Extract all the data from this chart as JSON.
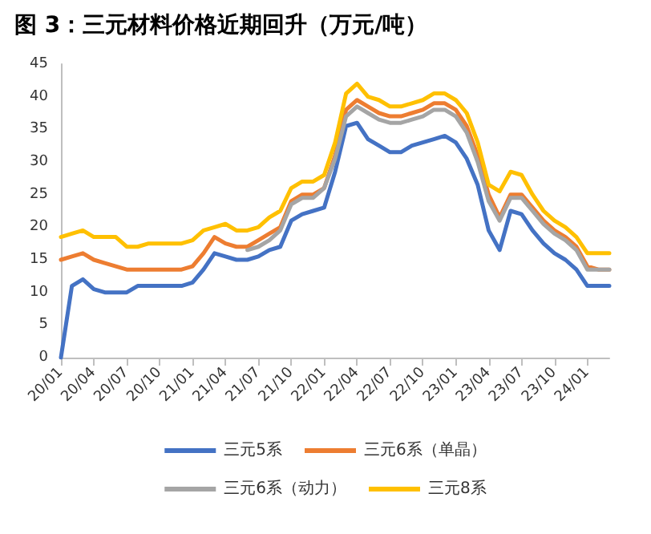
{
  "chart_data": {
    "type": "line",
    "title": "图 3：三元材料价格近期回升（万元/吨）",
    "categories": [
      "20/01",
      null,
      null,
      "20/04",
      null,
      null,
      "20/07",
      null,
      null,
      "20/10",
      null,
      null,
      "21/01",
      null,
      null,
      "21/04",
      null,
      null,
      "21/07",
      null,
      null,
      "21/10",
      null,
      null,
      "22/01",
      null,
      null,
      "22/04",
      null,
      null,
      "22/07",
      null,
      null,
      "22/10",
      null,
      null,
      "23/01",
      null,
      null,
      "23/04",
      null,
      null,
      "23/07",
      null,
      null,
      "23/10",
      null,
      null,
      "24/01",
      null,
      null
    ],
    "series": [
      {
        "name": "三元5系",
        "color": "#4472c4",
        "values": [
          0,
          11,
          12,
          10.5,
          10,
          10,
          10,
          11,
          11,
          11,
          11,
          11,
          11.5,
          13.5,
          16,
          15.5,
          15,
          15,
          15.5,
          16.5,
          17,
          21,
          22,
          22.5,
          23,
          28.5,
          35.5,
          36,
          33.5,
          32.5,
          31.5,
          31.5,
          32.5,
          33,
          33.5,
          34,
          33,
          30.5,
          26.5,
          19.5,
          16.5,
          22.5,
          22,
          19.5,
          17.5,
          16,
          15,
          13.5,
          11,
          11,
          11
        ]
      },
      {
        "name": "三元6系（单晶）",
        "color": "#ed7d31",
        "values": [
          15,
          15.5,
          16,
          15,
          14.5,
          14,
          13.5,
          13.5,
          13.5,
          13.5,
          13.5,
          13.5,
          14,
          16,
          18.5,
          17.5,
          17,
          17,
          18,
          19,
          20,
          24,
          25,
          25,
          26,
          31,
          38,
          39.5,
          38.5,
          37.5,
          37,
          37,
          37.5,
          38,
          39,
          39,
          38,
          35.5,
          31,
          25,
          21.5,
          25,
          25,
          23,
          21,
          19.5,
          18.5,
          17,
          14,
          13.5,
          13.5
        ]
      },
      {
        "name": "三元6系（动力）",
        "color": "#a5a5a5",
        "values": [
          null,
          null,
          null,
          null,
          null,
          null,
          null,
          null,
          null,
          null,
          null,
          null,
          null,
          null,
          null,
          null,
          null,
          16.5,
          17,
          18,
          19.5,
          23.5,
          24.5,
          24.5,
          26,
          30.5,
          37,
          38.5,
          37.5,
          36.5,
          36,
          36,
          36.5,
          37,
          38,
          38,
          37,
          34.5,
          30,
          24,
          21,
          24.5,
          24.5,
          22.5,
          20.5,
          19,
          18,
          16.5,
          13.5,
          13.5,
          13.5
        ]
      },
      {
        "name": "三元8系",
        "color": "#ffc000",
        "values": [
          18.5,
          19,
          19.5,
          18.5,
          18.5,
          18.5,
          17,
          17,
          17.5,
          17.5,
          17.5,
          17.5,
          18,
          19.5,
          20,
          20.5,
          19.5,
          19.5,
          20,
          21.5,
          22.5,
          26,
          27,
          27,
          28,
          33,
          40.5,
          42,
          40,
          39.5,
          38.5,
          38.5,
          39,
          39.5,
          40.5,
          40.5,
          39.5,
          37.5,
          33,
          26.5,
          25.5,
          28.5,
          28,
          25,
          22.5,
          21,
          20,
          18.5,
          16,
          16,
          16
        ]
      }
    ],
    "ylim": [
      0,
      45
    ],
    "yticks": [
      0,
      5,
      10,
      15,
      20,
      25,
      30,
      35,
      40,
      45
    ],
    "grid": false,
    "legend": "bottom",
    "marker": "none",
    "line_style": "solid"
  }
}
